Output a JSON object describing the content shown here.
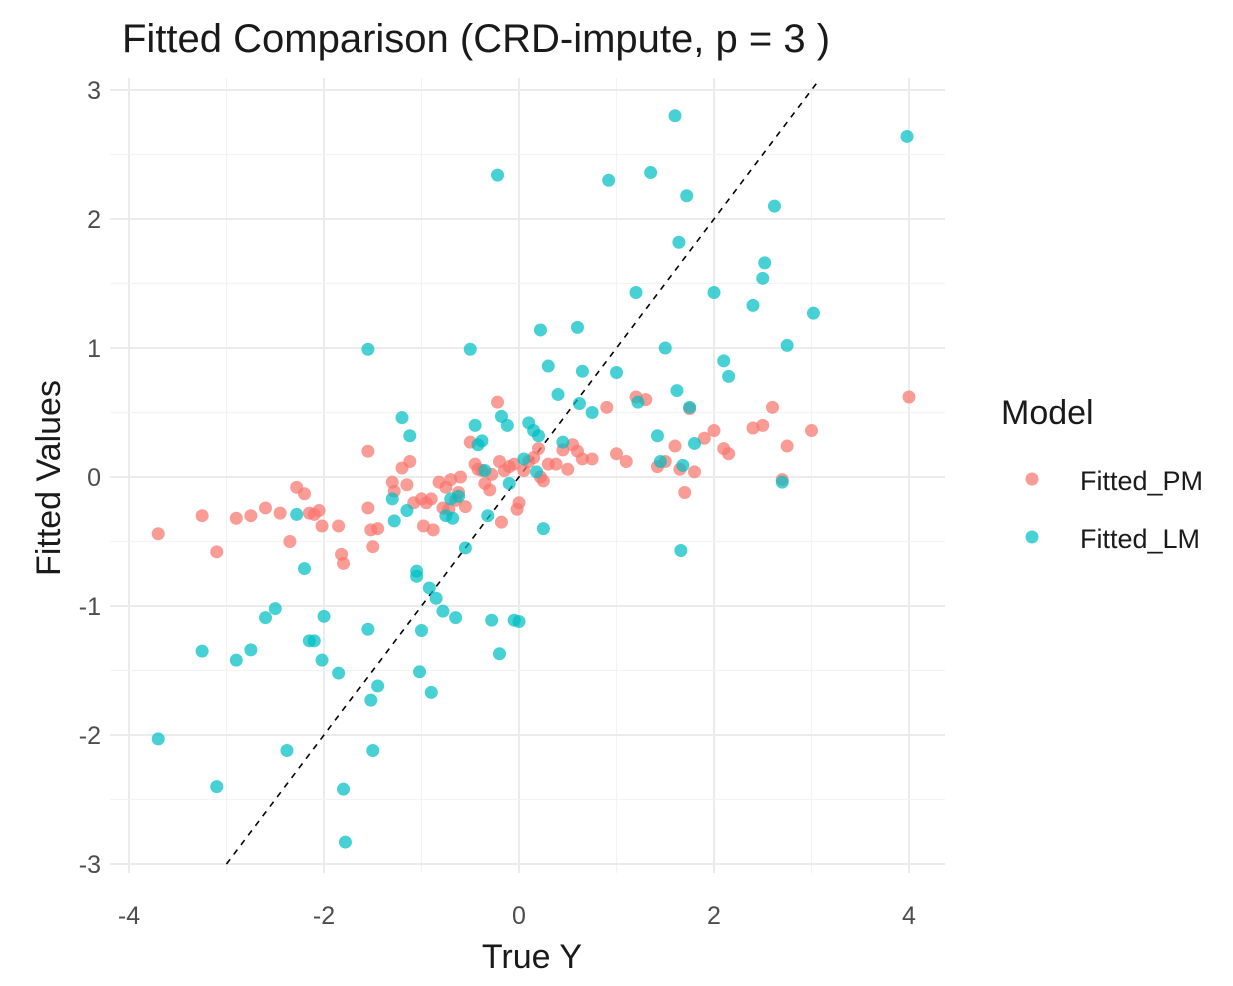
{
  "chart_data": {
    "type": "scatter",
    "title": "Fitted Comparison (CRD-impute, p = 3 )",
    "xlabel": "True Y",
    "ylabel": "Fitted Values",
    "xlim": [
      -4,
      4
    ],
    "ylim": [
      -3,
      3
    ],
    "xticks": [
      -4,
      -2,
      0,
      2,
      4
    ],
    "yticks": [
      -3,
      -2,
      -1,
      0,
      1,
      2,
      3
    ],
    "grid": true,
    "reference_line": {
      "slope": 1,
      "intercept": 0,
      "style": "dashed",
      "color": "#000000"
    },
    "legend": {
      "title": "Model",
      "placement": "right"
    },
    "series": [
      {
        "name": "Fitted_PM",
        "color": "#F8766D",
        "points": [
          [
            -3.7,
            -0.44
          ],
          [
            -3.25,
            -0.3
          ],
          [
            -3.1,
            -0.58
          ],
          [
            -2.9,
            -0.32
          ],
          [
            -2.75,
            -0.3
          ],
          [
            -2.6,
            -0.24
          ],
          [
            -2.45,
            -0.28
          ],
          [
            -2.35,
            -0.5
          ],
          [
            -2.28,
            -0.08
          ],
          [
            -2.2,
            -0.13
          ],
          [
            -2.15,
            -0.28
          ],
          [
            -2.1,
            -0.29
          ],
          [
            -2.05,
            -0.26
          ],
          [
            -2.02,
            -0.38
          ],
          [
            -1.85,
            -0.38
          ],
          [
            -1.82,
            -0.6
          ],
          [
            -1.8,
            -0.67
          ],
          [
            -1.55,
            -0.24
          ],
          [
            -1.52,
            -0.41
          ],
          [
            -1.5,
            -0.54
          ],
          [
            -1.45,
            -0.4
          ],
          [
            -1.55,
            0.2
          ],
          [
            -1.3,
            -0.04
          ],
          [
            -1.28,
            -0.11
          ],
          [
            -1.2,
            0.07
          ],
          [
            -1.15,
            -0.06
          ],
          [
            -1.12,
            0.12
          ],
          [
            -1.08,
            -0.2
          ],
          [
            -1.0,
            -0.17
          ],
          [
            -0.98,
            -0.38
          ],
          [
            -0.95,
            -0.2
          ],
          [
            -0.9,
            -0.17
          ],
          [
            -0.88,
            -0.41
          ],
          [
            -0.82,
            -0.04
          ],
          [
            -0.78,
            -0.24
          ],
          [
            -0.75,
            -0.08
          ],
          [
            -0.72,
            -0.25
          ],
          [
            -0.7,
            -0.02
          ],
          [
            -0.65,
            -0.18
          ],
          [
            -0.62,
            -0.12
          ],
          [
            -0.6,
            0.0
          ],
          [
            -0.55,
            -0.23
          ],
          [
            -0.5,
            0.27
          ],
          [
            -0.45,
            0.1
          ],
          [
            -0.42,
            0.06
          ],
          [
            -0.38,
            0.05
          ],
          [
            -0.35,
            -0.05
          ],
          [
            -0.3,
            -0.1
          ],
          [
            -0.28,
            0.02
          ],
          [
            -0.22,
            0.58
          ],
          [
            -0.2,
            0.12
          ],
          [
            -0.18,
            -0.35
          ],
          [
            -0.15,
            0.05
          ],
          [
            -0.1,
            0.08
          ],
          [
            -0.05,
            0.1
          ],
          [
            -0.02,
            -0.25
          ],
          [
            0.0,
            -0.2
          ],
          [
            0.05,
            0.05
          ],
          [
            0.1,
            0.12
          ],
          [
            0.15,
            0.15
          ],
          [
            0.2,
            0.22
          ],
          [
            0.22,
            0.0
          ],
          [
            0.25,
            -0.03
          ],
          [
            0.3,
            0.1
          ],
          [
            0.38,
            0.1
          ],
          [
            0.45,
            0.21
          ],
          [
            0.5,
            0.06
          ],
          [
            0.55,
            0.25
          ],
          [
            0.6,
            0.2
          ],
          [
            0.65,
            0.14
          ],
          [
            0.75,
            0.14
          ],
          [
            0.9,
            0.54
          ],
          [
            1.0,
            0.18
          ],
          [
            1.1,
            0.12
          ],
          [
            1.2,
            0.62
          ],
          [
            1.3,
            0.6
          ],
          [
            1.42,
            0.08
          ],
          [
            1.5,
            0.12
          ],
          [
            1.6,
            0.24
          ],
          [
            1.65,
            0.06
          ],
          [
            1.7,
            -0.12
          ],
          [
            1.75,
            0.53
          ],
          [
            1.8,
            0.04
          ],
          [
            1.9,
            0.3
          ],
          [
            2.0,
            0.36
          ],
          [
            2.1,
            0.22
          ],
          [
            2.15,
            0.18
          ],
          [
            2.4,
            0.38
          ],
          [
            2.5,
            0.4
          ],
          [
            2.6,
            0.54
          ],
          [
            2.7,
            -0.02
          ],
          [
            2.75,
            0.24
          ],
          [
            3.0,
            0.36
          ],
          [
            4.0,
            0.62
          ]
        ]
      },
      {
        "name": "Fitted_LM",
        "color": "#00BFC4",
        "points": [
          [
            -3.7,
            -2.03
          ],
          [
            -3.25,
            -1.35
          ],
          [
            -3.1,
            -2.4
          ],
          [
            -2.9,
            -1.42
          ],
          [
            -2.75,
            -1.34
          ],
          [
            -2.6,
            -1.09
          ],
          [
            -2.5,
            -1.02
          ],
          [
            -2.38,
            -2.12
          ],
          [
            -2.28,
            -0.29
          ],
          [
            -2.2,
            -0.71
          ],
          [
            -2.15,
            -1.27
          ],
          [
            -2.1,
            -1.27
          ],
          [
            -2.02,
            -1.42
          ],
          [
            -2.0,
            -1.08
          ],
          [
            -1.85,
            -1.52
          ],
          [
            -1.8,
            -2.42
          ],
          [
            -1.78,
            -2.83
          ],
          [
            -1.55,
            -1.18
          ],
          [
            -1.52,
            -1.73
          ],
          [
            -1.5,
            -2.12
          ],
          [
            -1.45,
            -1.62
          ],
          [
            -1.55,
            0.99
          ],
          [
            -1.3,
            -0.17
          ],
          [
            -1.28,
            -0.34
          ],
          [
            -1.2,
            0.46
          ],
          [
            -1.15,
            -0.26
          ],
          [
            -1.12,
            0.32
          ],
          [
            -1.05,
            -0.73
          ],
          [
            -1.05,
            -0.77
          ],
          [
            -1.02,
            -1.51
          ],
          [
            -1.0,
            -1.19
          ],
          [
            -0.92,
            -0.86
          ],
          [
            -0.9,
            -1.67
          ],
          [
            -0.85,
            -0.94
          ],
          [
            -0.78,
            -1.04
          ],
          [
            -0.75,
            -0.3
          ],
          [
            -0.7,
            -0.17
          ],
          [
            -0.68,
            -0.32
          ],
          [
            -0.65,
            -1.09
          ],
          [
            -0.62,
            -0.15
          ],
          [
            -0.55,
            -0.55
          ],
          [
            -0.5,
            0.99
          ],
          [
            -0.45,
            0.4
          ],
          [
            -0.42,
            0.25
          ],
          [
            -0.38,
            0.28
          ],
          [
            -0.35,
            0.05
          ],
          [
            -0.32,
            -0.3
          ],
          [
            -0.28,
            -1.11
          ],
          [
            -0.22,
            2.34
          ],
          [
            -0.2,
            -1.37
          ],
          [
            -0.18,
            0.47
          ],
          [
            -0.12,
            0.4
          ],
          [
            -0.1,
            -0.05
          ],
          [
            -0.05,
            -1.11
          ],
          [
            0.0,
            -1.12
          ],
          [
            0.05,
            0.14
          ],
          [
            0.1,
            0.42
          ],
          [
            0.15,
            0.36
          ],
          [
            0.18,
            0.04
          ],
          [
            0.2,
            0.32
          ],
          [
            0.22,
            1.14
          ],
          [
            0.25,
            -0.4
          ],
          [
            0.3,
            0.86
          ],
          [
            0.4,
            0.64
          ],
          [
            0.45,
            0.27
          ],
          [
            0.6,
            1.16
          ],
          [
            0.62,
            0.57
          ],
          [
            0.65,
            0.82
          ],
          [
            0.75,
            0.5
          ],
          [
            0.92,
            2.3
          ],
          [
            1.0,
            0.81
          ],
          [
            1.2,
            1.43
          ],
          [
            1.22,
            0.58
          ],
          [
            1.35,
            2.36
          ],
          [
            1.42,
            0.32
          ],
          [
            1.45,
            0.12
          ],
          [
            1.5,
            1.0
          ],
          [
            1.6,
            2.8
          ],
          [
            1.62,
            0.67
          ],
          [
            1.64,
            1.82
          ],
          [
            1.66,
            -0.57
          ],
          [
            1.68,
            0.09
          ],
          [
            1.72,
            2.18
          ],
          [
            1.8,
            0.26
          ],
          [
            2.0,
            1.43
          ],
          [
            2.1,
            0.9
          ],
          [
            2.15,
            0.78
          ],
          [
            2.4,
            1.33
          ],
          [
            2.5,
            1.54
          ],
          [
            2.52,
            1.66
          ],
          [
            2.62,
            2.1
          ],
          [
            2.7,
            -0.04
          ],
          [
            2.75,
            1.02
          ],
          [
            3.02,
            1.27
          ],
          [
            3.98,
            2.64
          ],
          [
            1.75,
            0.54
          ]
        ]
      }
    ]
  }
}
